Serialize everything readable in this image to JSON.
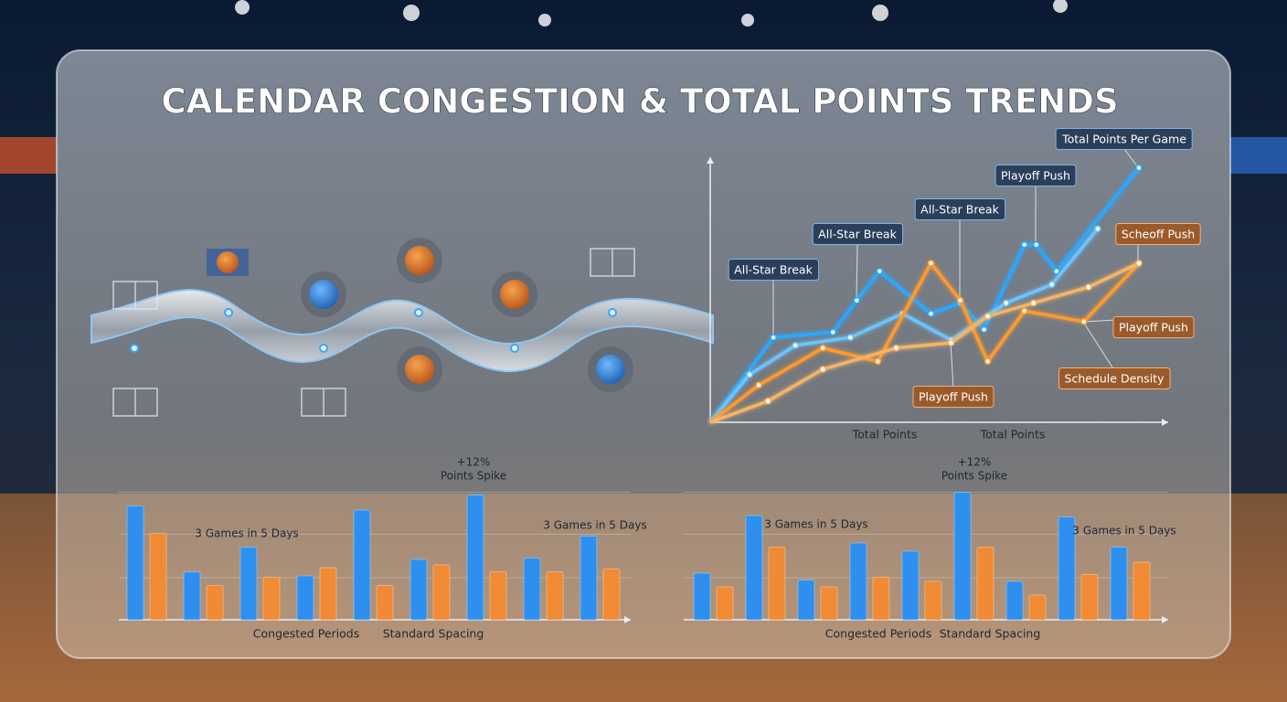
{
  "title": "CALENDAR CONGESTION & TOTAL POINTS TRENDS",
  "chart_data": [
    {
      "type": "line",
      "x_axis_labels": [
        "Total Points",
        "Total Points"
      ],
      "xlim": [
        0,
        10
      ],
      "ylim": [
        0,
        100
      ],
      "series": [
        {
          "color": "#2aa8ff",
          "x": [
            0,
            1.38,
            2.68,
            3.2,
            3.7,
            4.82,
            5.46,
            5.98,
            6.86,
            7.12,
            7.56,
            9.36
          ],
          "values": [
            0,
            32,
            34,
            46,
            57,
            41,
            45,
            35,
            67,
            67,
            57,
            96
          ]
        },
        {
          "color": "#6cc4ff",
          "x": [
            0,
            0.86,
            1.86,
            3.06,
            4.2,
            5.26,
            6.46,
            7.46,
            8.46
          ],
          "values": [
            0,
            18,
            29,
            32,
            41,
            31,
            45,
            52,
            73
          ]
        },
        {
          "color": "#ff9a2e",
          "x": [
            0,
            1.06,
            2.46,
            3.66,
            4.82,
            5.46,
            6.06,
            6.86,
            8.16,
            9.36
          ],
          "values": [
            0,
            14,
            28,
            23,
            60,
            46,
            23,
            42,
            38,
            60
          ]
        },
        {
          "color": "#f5b466",
          "x": [
            0,
            1.26,
            2.46,
            4.06,
            5.26,
            6.06,
            7.06,
            8.26,
            9.36
          ],
          "values": [
            0,
            8,
            20,
            28,
            30,
            40,
            45,
            51,
            60
          ]
        }
      ],
      "annotations": [
        "Total Points Per Game",
        "Playoff Push",
        "All-Star Break",
        "All-Star Break",
        "All-Star Break",
        "Scheoff Push",
        "Playoff Push",
        "Schedule Density",
        "Playoff Push"
      ]
    },
    {
      "type": "bar",
      "ylim": [
        0,
        100
      ],
      "series": [
        {
          "color": "#2f8fef",
          "values": [
            83,
            35,
            53,
            32,
            80,
            44,
            91,
            45,
            61
          ]
        },
        {
          "color": "#f08a35",
          "values": [
            63,
            25,
            31,
            38,
            25,
            40,
            35,
            35,
            37
          ]
        }
      ],
      "annotations": [
        "+12%",
        "Points Spike",
        "3 Games in 5 Days",
        "3 Games in 5 Days"
      ],
      "x_axis_labels": [
        "Congested Periods",
        "Standard Spacing"
      ]
    },
    {
      "type": "bar",
      "ylim": [
        0,
        100
      ],
      "series": [
        {
          "color": "#2f8fef",
          "values": [
            34,
            76,
            29,
            56,
            50,
            93,
            28,
            75,
            53
          ]
        },
        {
          "color": "#f08a35",
          "values": [
            24,
            53,
            24,
            31,
            28,
            53,
            18,
            33,
            42
          ]
        }
      ],
      "annotations": [
        "+12%",
        "Points Spike",
        "3 Games in 5 Days",
        "3 Games in 5 Days"
      ],
      "x_axis_labels": [
        "Congested Periods",
        "Standard Spacing"
      ]
    }
  ]
}
